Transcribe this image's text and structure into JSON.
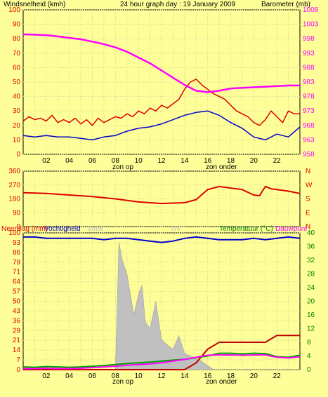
{
  "colors": {
    "background": "#ffff99",
    "wind": "#dd0000",
    "wind_gust": "#dd0000",
    "wind_avg": "#0000cc",
    "barometer": "#ff00ff",
    "direction": "#dd0000",
    "rain": "#c00000",
    "humidity": "#0000cc",
    "solar": "#c0c0c0",
    "uv": "#c0c0c0",
    "temperature": "#00a000",
    "dewpoint": "#ff00ff",
    "left_axis_text": "#dd0000",
    "right_axis_text_top": "#ff00ff",
    "right_axis_text_bottom": "#008000",
    "direction_axis_text": "#dd0000"
  },
  "chart_data": [
    {
      "type": "line",
      "title": "24 hour graph day : 19 January 2009",
      "left_label": "Windsnelheid (kmh)",
      "right_label": "Barometer (mb)",
      "left_ticks": [
        "100",
        "90",
        "80",
        "70",
        "60",
        "50",
        "40",
        "30",
        "20",
        "10",
        "0"
      ],
      "left_lim": [
        0,
        100
      ],
      "right_ticks": [
        "1008",
        "1003",
        "998",
        "993",
        "988",
        "983",
        "978",
        "973",
        "968",
        "963",
        "958"
      ],
      "right_lim": [
        958,
        1008
      ],
      "x_ticks": [
        "02",
        "04",
        "06",
        "08",
        "10",
        "12",
        "14",
        "16",
        "18",
        "20",
        "22"
      ],
      "x_lim": [
        0,
        24
      ],
      "annotations": [
        "zon op",
        "zon onder"
      ],
      "series": [
        {
          "key": "gust",
          "axis": "left",
          "x": [
            0,
            0.5,
            1,
            1.5,
            2,
            2.5,
            3,
            3.5,
            4,
            4.5,
            5,
            5.5,
            6,
            6.5,
            7,
            7.5,
            8,
            8.5,
            9,
            9.5,
            10,
            10.5,
            11,
            11.5,
            12,
            12.5,
            13,
            13.5,
            14,
            14.5,
            15,
            15.5,
            16,
            16.5,
            17,
            17.5,
            18,
            18.5,
            19,
            19.5,
            20,
            20.5,
            21,
            21.5,
            22,
            22.5,
            23,
            23.5,
            24
          ],
          "values": [
            23,
            26,
            24,
            25,
            23,
            27,
            22,
            24,
            22,
            25,
            21,
            24,
            20,
            25,
            22,
            24,
            26,
            25,
            28,
            26,
            30,
            28,
            32,
            30,
            34,
            32,
            35,
            38,
            45,
            50,
            52,
            48,
            45,
            42,
            40,
            38,
            34,
            30,
            28,
            26,
            22,
            20,
            24,
            30,
            26,
            22,
            30,
            28,
            28
          ]
        },
        {
          "key": "average",
          "axis": "left",
          "x": [
            0,
            1,
            2,
            3,
            4,
            5,
            6,
            7,
            8,
            9,
            10,
            11,
            12,
            13,
            14,
            15,
            16,
            17,
            18,
            19,
            20,
            21,
            22,
            23,
            24
          ],
          "values": [
            13,
            12,
            13,
            12,
            12,
            11,
            10,
            12,
            13,
            16,
            18,
            19,
            21,
            24,
            27,
            29,
            30,
            27,
            22,
            18,
            12,
            10,
            14,
            12,
            19
          ]
        },
        {
          "key": "barometer",
          "axis": "right",
          "x": [
            0,
            1,
            2,
            3,
            4,
            5,
            6,
            7,
            8,
            9,
            10,
            11,
            12,
            13,
            14,
            15,
            16,
            17,
            18,
            19,
            20,
            21,
            22,
            23,
            24
          ],
          "values": [
            999.5,
            999.4,
            999.2,
            998.8,
            998.3,
            997.8,
            997.0,
            996.1,
            995.0,
            993.5,
            991.5,
            989.5,
            987.0,
            984.5,
            982.0,
            980.0,
            979.5,
            980.0,
            980.8,
            981.0,
            981.2,
            981.4,
            981.6,
            981.8,
            981.8
          ]
        }
      ]
    },
    {
      "type": "line",
      "left_ticks": [
        "360",
        "270",
        "180",
        "90",
        "0"
      ],
      "left_lim": [
        0,
        360
      ],
      "right_ticks": [
        "N",
        "W",
        "S",
        "E",
        "N"
      ],
      "series": [
        {
          "key": "direction",
          "x": [
            0,
            2,
            4,
            6,
            8,
            10,
            12,
            14,
            15,
            16,
            17,
            18,
            19,
            20,
            20.5,
            21,
            21.5,
            22,
            23,
            24
          ],
          "values": [
            220,
            215,
            205,
            195,
            180,
            160,
            150,
            155,
            175,
            240,
            260,
            250,
            240,
            205,
            200,
            260,
            245,
            240,
            230,
            215
          ]
        }
      ]
    },
    {
      "type": "area",
      "left_label": "Neerslag (mm)",
      "humidity_label": "Vochtigheid",
      "solar_label": "Solar",
      "uv_label": "UV",
      "right_label": "Temperatuur (°C)",
      "dew_label": "Dauwpunt",
      "left_ticks": [
        "100",
        "93",
        "86",
        "79",
        "71",
        "64",
        "57",
        "50",
        "43",
        "36",
        "29",
        "21",
        "14",
        "7",
        "0"
      ],
      "left_lim": [
        0,
        100
      ],
      "right_ticks": [
        "40",
        "36",
        "32",
        "28",
        "24",
        "20",
        "16",
        "12",
        "8",
        "4",
        "0"
      ],
      "right_lim": [
        0,
        40
      ],
      "x_ticks": [
        "02",
        "04",
        "06",
        "08",
        "10",
        "12",
        "14",
        "16",
        "18",
        "20",
        "22"
      ],
      "x_lim": [
        0,
        24
      ],
      "annotations": [
        "zon op",
        "zon onder"
      ],
      "series": [
        {
          "key": "solar",
          "axis": "left",
          "x": [
            0,
            7,
            8,
            8.3,
            8.6,
            9,
            9.3,
            9.6,
            10,
            10.3,
            10.6,
            11,
            11.5,
            12,
            12.5,
            13,
            13.5,
            14,
            14.5,
            15,
            15.5,
            16,
            16.5,
            24
          ],
          "values": [
            0,
            0,
            0,
            93,
            80,
            70,
            55,
            40,
            55,
            62,
            35,
            30,
            50,
            22,
            18,
            15,
            25,
            12,
            10,
            8,
            6,
            3,
            0,
            0
          ]
        },
        {
          "key": "humidity",
          "axis": "left",
          "x": [
            0,
            1,
            2,
            3,
            4,
            5,
            6,
            7,
            8,
            9,
            10,
            11,
            12,
            13,
            14,
            15,
            16,
            17,
            18,
            19,
            20,
            21,
            22,
            23,
            24
          ],
          "values": [
            97,
            97,
            96,
            96,
            96,
            96,
            96,
            95,
            96,
            96,
            95,
            94,
            93,
            94,
            96,
            97,
            96,
            95,
            95,
            95,
            96,
            95,
            96,
            97,
            96
          ]
        },
        {
          "key": "rain",
          "axis": "right",
          "x": [
            0,
            2,
            4,
            6,
            8,
            10,
            12,
            13,
            14,
            15,
            16,
            17,
            18,
            19,
            20,
            21,
            21.5,
            22,
            23,
            24
          ],
          "values": [
            0,
            0,
            0,
            0,
            0,
            0,
            0,
            0,
            0,
            2,
            6,
            8,
            8,
            8,
            8,
            8,
            9,
            10,
            10,
            10
          ]
        },
        {
          "key": "temperature",
          "axis": "right",
          "x": [
            0,
            1,
            2,
            3,
            4,
            5,
            6,
            7,
            8,
            9,
            10,
            11,
            12,
            13,
            14,
            15,
            16,
            17,
            18,
            19,
            20,
            21,
            22,
            23,
            24
          ],
          "values": [
            0.8,
            0.7,
            0.9,
            0.8,
            0.7,
            0.8,
            1.0,
            1.2,
            1.5,
            1.8,
            2.0,
            2.2,
            2.5,
            2.8,
            3.0,
            3.5,
            4.0,
            4.8,
            4.8,
            4.6,
            4.8,
            4.7,
            3.8,
            3.6,
            4.2
          ]
        },
        {
          "key": "dewpoint",
          "axis": "right",
          "x": [
            0,
            1,
            2,
            3,
            4,
            5,
            6,
            7,
            8,
            9,
            10,
            11,
            12,
            13,
            14,
            15,
            16,
            17,
            18,
            19,
            20,
            21,
            22,
            23,
            24
          ],
          "values": [
            0.3,
            0.3,
            0.4,
            0.3,
            0.3,
            0.4,
            0.6,
            0.8,
            1.0,
            1.3,
            1.5,
            1.7,
            2.0,
            2.5,
            3.0,
            3.6,
            4.2,
            4.3,
            4.3,
            4.2,
            4.3,
            4.3,
            3.6,
            3.4,
            3.8
          ]
        }
      ]
    }
  ]
}
